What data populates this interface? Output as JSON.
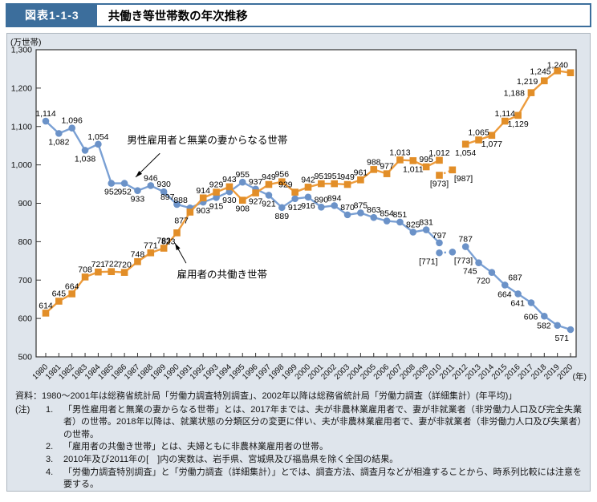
{
  "header": {
    "tag": "図表1-1-3",
    "title": "共働き等世帯数の年次推移"
  },
  "chart_data": {
    "type": "line",
    "title": "共働き等世帯数の年次推移",
    "y_unit": "(万世帯)",
    "x_unit": "(年)",
    "ylim": [
      500,
      1300
    ],
    "ytick_step": 100,
    "ytick_labels": [
      "500",
      "600",
      "700",
      "800",
      "900",
      "1,000",
      "1,100",
      "1,200",
      "1,300"
    ],
    "grid": false,
    "legend": "inline-annotations",
    "years": [
      "1980",
      "1981",
      "1982",
      "1983",
      "1984",
      "1985",
      "1986",
      "1987",
      "1988",
      "1989",
      "1990",
      "1991",
      "1992",
      "1993",
      "1994",
      "1995",
      "1996",
      "1997",
      "1998",
      "1999",
      "2000",
      "2001",
      "2002",
      "2003",
      "2004",
      "2005",
      "2006",
      "2007",
      "2008",
      "2009",
      "2010",
      "2011",
      "2012",
      "2013",
      "2014",
      "2015",
      "2016",
      "2017",
      "2018",
      "2019",
      "2020"
    ],
    "series": [
      {
        "name": "男性雇用者と無業の妻からなる世帯",
        "marker": "circle",
        "color": "#7aa0d4",
        "marker_color": "#6b92c8",
        "values": [
          1114,
          1082,
          1096,
          1038,
          1054,
          952,
          952,
          933,
          946,
          930,
          897,
          888,
          903,
          915,
          930,
          955,
          937,
          921,
          889,
          912,
          916,
          890,
          894,
          870,
          875,
          863,
          854,
          851,
          825,
          831,
          797,
          null,
          787,
          745,
          720,
          687,
          664,
          641,
          606,
          582,
          571
        ],
        "labels": [
          "1,114",
          "1,082",
          "1,096",
          "1,038",
          "1,054",
          "952",
          "952",
          "933",
          "946",
          "930",
          "897",
          "888",
          "903",
          "915",
          "930",
          "955",
          "937",
          "921",
          "889",
          "912",
          "916",
          "890",
          "894",
          "870",
          "875",
          "863",
          "854",
          "851",
          "825",
          "831",
          "797",
          "",
          "787",
          "745",
          "720",
          "687",
          "664",
          "641",
          "606",
          "582",
          "571"
        ],
        "label_pos": [
          "a",
          "b",
          "a",
          "b",
          "a",
          "b",
          "b",
          "b",
          "a",
          "a",
          "al",
          "al",
          "b",
          "b",
          "b",
          "a",
          "a",
          "b",
          "b",
          "b",
          "b",
          "a",
          "a",
          "a",
          "a",
          "a",
          "a",
          "a",
          "a",
          "a",
          "a",
          "",
          "a",
          "bl",
          "bl",
          "ar",
          "l",
          "l",
          "l",
          "l",
          "bl"
        ],
        "brackets": [
          {
            "year": "2010",
            "year_index": 30,
            "v": 771,
            "label": "[771]",
            "pos": "bl"
          },
          {
            "year": "2011",
            "year_index": 31,
            "v": 773,
            "label": "[773]",
            "pos": "br"
          }
        ]
      },
      {
        "name": "雇用者の共働き世帯",
        "marker": "square",
        "color": "#ed9c3d",
        "marker_color": "#e28e28",
        "values": [
          614,
          645,
          664,
          708,
          721,
          722,
          720,
          748,
          771,
          783,
          823,
          877,
          914,
          929,
          943,
          908,
          927,
          949,
          956,
          929,
          942,
          951,
          951,
          949,
          961,
          988,
          977,
          1013,
          1011,
          995,
          1012,
          null,
          1054,
          1065,
          1077,
          1114,
          1129,
          1188,
          1219,
          1245,
          1240
        ],
        "labels": [
          "614",
          "645",
          "664",
          "708",
          "721",
          "722",
          "720",
          "748",
          "771",
          "783",
          "823",
          "877",
          "914",
          "929",
          "943",
          "908",
          "927",
          "949",
          "956",
          "929",
          "942",
          "951",
          "951",
          "949",
          "961",
          "988",
          "977",
          "1,013",
          "1,011",
          "995",
          "1,012",
          "",
          "1,054",
          "1,065",
          "1,077",
          "1,114",
          "1,129",
          "1,188",
          "1,219",
          "1,245",
          "1,240"
        ],
        "label_pos": [
          "a",
          "a",
          "a",
          "a",
          "a",
          "a",
          "a",
          "a",
          "a",
          "a",
          "bl",
          "bl",
          "a",
          "a",
          "a",
          "b",
          "b",
          "a",
          "a",
          "al",
          "a",
          "a",
          "a",
          "a",
          "a",
          "a",
          "a",
          "a",
          "b",
          "a",
          "a",
          "",
          "b",
          "a",
          "b",
          "a",
          "b",
          "l",
          "l",
          "l",
          "al"
        ],
        "brackets": [
          {
            "year": "2010",
            "year_index": 30,
            "v": 973,
            "label": "[973]",
            "pos": "b"
          },
          {
            "year": "2011",
            "year_index": 31,
            "v": 987,
            "label": "[987]",
            "pos": "br"
          }
        ]
      }
    ],
    "annotations": [
      {
        "text": "男性雇用者と無業の妻からなる世帯",
        "text_xi": 6.2,
        "text_yv": 1056,
        "line": [
          [
            8.7,
            1030
          ],
          [
            6.85,
            968
          ]
        ]
      },
      {
        "text": "雇用者の共働き世帯",
        "text_xi": 10.0,
        "text_yv": 706,
        "line": [
          [
            10.7,
            744
          ],
          [
            9.85,
            796
          ]
        ]
      }
    ]
  },
  "notes": {
    "source": "資料：1980～2001年は総務省統計局「労働力調査特別調査」、2002年以降は総務省統計局「労働力調査（詳細集計）(年平均)」",
    "note_label": "(注)",
    "items": [
      {
        "num": "1.",
        "text": "「男性雇用者と無業の妻からなる世帯」とは、2017年までは、夫が非農林業雇用者で、妻が非就業者（非労働力人口及び完全失業者）の世帯。2018年以降は、就業状態の分類区分の変更に伴い、夫が非農林業雇用者で、妻が非就業者（非労働力人口及び失業者）の世帯。"
      },
      {
        "num": "2.",
        "text": "「雇用者の共働き世帯」とは、夫婦ともに非農林業雇用者の世帯。"
      },
      {
        "num": "3.",
        "text": "2010年及び2011年の[　]内の実数は、岩手県、宮城県及び福島県を除く全国の結果。"
      },
      {
        "num": "4.",
        "text": "「労働力調査特別調査」と「労働力調査（詳細集計）」とでは、調査方法、調査月などが相違することから、時系列比較には注意を要する。"
      }
    ]
  }
}
